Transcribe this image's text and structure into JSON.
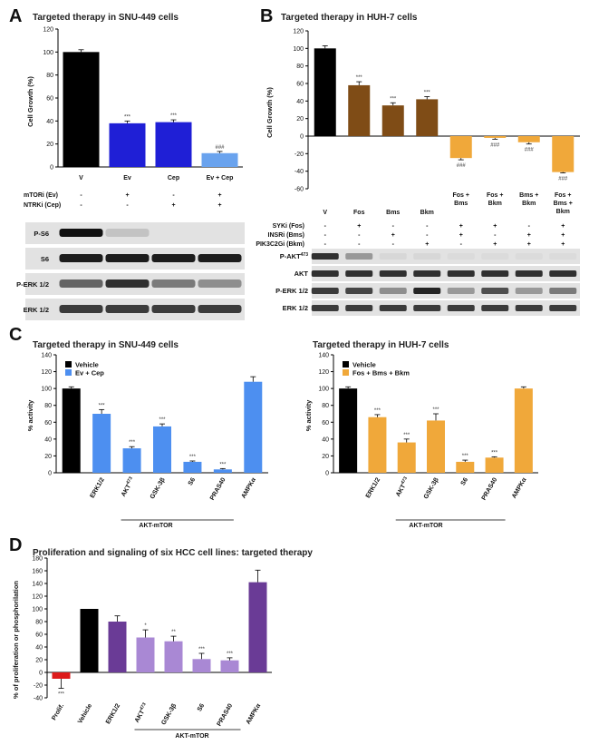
{
  "colors": {
    "black": "#000000",
    "ev_blue": "#1f1fd6",
    "ev_light": "#6aa3ee",
    "brown": "#7f4c16",
    "orange": "#f0a83a",
    "blue_c": "#4d8ff0",
    "red": "#dd1a1a",
    "purple_dark": "#6a3b96",
    "purple_light": "#a988d4"
  },
  "panels": {
    "A": {
      "letter": "A",
      "title": "Targeted therapy in SNU-449 cells",
      "ylabel": "Cell Growth (%)",
      "treat_rows": [
        {
          "label": "mTORi (Ev)",
          "marks": [
            "-",
            "+",
            "-",
            "+"
          ]
        },
        {
          "label": "NTRKi (Cep)",
          "marks": [
            "-",
            "-",
            "+",
            "+"
          ]
        }
      ],
      "blots": [
        "P-S6",
        "S6",
        "P-ERK 1/2",
        "ERK 1/2"
      ]
    },
    "B": {
      "letter": "B",
      "title": "Targeted therapy in HUH-7 cells",
      "ylabel": "Cell Growth (%)",
      "treat_rows": [
        {
          "label": "SYKi (Fos)",
          "marks": [
            "-",
            "+",
            "-",
            "-",
            "+",
            "+",
            "-",
            "+"
          ]
        },
        {
          "label": "INSRi (Bms)",
          "marks": [
            "-",
            "-",
            "+",
            "-",
            "+",
            "-",
            "+",
            "+"
          ]
        },
        {
          "label": "PIK3C2Gi (Bkm)",
          "marks": [
            "-",
            "-",
            "-",
            "+",
            "-",
            "+",
            "+",
            "+"
          ]
        }
      ],
      "blots": [
        "P-AKT473",
        "AKT",
        "P-ERK 1/2",
        "ERK 1/2"
      ]
    },
    "C": {
      "letter": "C",
      "left_title": "Targeted therapy in SNU-449 cells",
      "right_title": "Targeted therapy in HUH-7 cells",
      "ylabel": "% activity",
      "bracket_label": "AKT-mTOR"
    },
    "D": {
      "letter": "D",
      "title": "Proliferation and signaling of six HCC cell lines: targeted therapy",
      "ylabel": "% of proliferation or phosphorilation",
      "bracket_label": "AKT-mTOR"
    }
  },
  "chart_data": [
    {
      "id": "A",
      "type": "bar",
      "title": "Targeted therapy in SNU-449 cells",
      "ylabel": "Cell Growth (%)",
      "ylim": [
        0,
        120
      ],
      "yticks": [
        0,
        20,
        40,
        60,
        80,
        100,
        120
      ],
      "categories": [
        "V",
        "Ev",
        "Cep",
        "Ev + Cep"
      ],
      "values": [
        100,
        38,
        39,
        12
      ],
      "errors": [
        2,
        2,
        2,
        1.5
      ],
      "significance": [
        "",
        "***",
        "***",
        "###"
      ],
      "bar_colors": [
        "#000000",
        "#1f1fd6",
        "#1f1fd6",
        "#6aa3ee"
      ]
    },
    {
      "id": "B",
      "type": "bar",
      "title": "Targeted therapy in HUH-7 cells",
      "ylabel": "Cell Growth (%)",
      "ylim": [
        -60,
        120
      ],
      "yticks": [
        -60,
        -40,
        -20,
        0,
        20,
        40,
        60,
        80,
        100,
        120
      ],
      "categories": [
        "V",
        "Fos",
        "Bms",
        "Bkm",
        "Fos + Bms",
        "Fos + Bkm",
        "Bms + Bkm",
        "Fos + Bms + Bkm"
      ],
      "values": [
        100,
        58,
        35,
        42,
        -25,
        -2,
        -7,
        -41
      ],
      "errors": [
        3,
        4,
        3,
        3,
        2,
        1.5,
        2,
        1
      ],
      "significance": [
        "",
        "***",
        "***",
        "***",
        "###",
        "###",
        "###",
        "###"
      ],
      "bar_colors": [
        "#000000",
        "#7f4c16",
        "#7f4c16",
        "#7f4c16",
        "#f0a83a",
        "#f0a83a",
        "#f0a83a",
        "#f0a83a"
      ]
    },
    {
      "id": "C-left",
      "type": "bar",
      "title": "Targeted therapy in SNU-449 cells",
      "ylabel": "% activity",
      "ylim": [
        0,
        140
      ],
      "yticks": [
        0,
        20,
        40,
        60,
        80,
        100,
        120,
        140
      ],
      "categories": [
        "ERK1/2",
        "AKT473",
        "GSK-3β",
        "S6",
        "PRAS40",
        "AMPKα"
      ],
      "series": [
        {
          "name": "Vehicle",
          "color": "#000000",
          "values": [
            100,
            null,
            null,
            null,
            null,
            null
          ],
          "errors": [
            2,
            null,
            null,
            null,
            null,
            null
          ]
        },
        {
          "name": "Ev + Cep",
          "color": "#4d8ff0",
          "values": [
            70,
            29,
            55,
            13,
            4,
            108
          ],
          "errors": [
            5,
            2,
            3,
            1,
            1,
            6
          ]
        }
      ],
      "significance": [
        "***",
        "***",
        "***",
        "***",
        "***",
        ""
      ],
      "legend": "top-left"
    },
    {
      "id": "C-right",
      "type": "bar",
      "title": "Targeted therapy in HUH-7 cells",
      "ylabel": "% activity",
      "ylim": [
        0,
        140
      ],
      "yticks": [
        0,
        20,
        40,
        60,
        80,
        100,
        120,
        140
      ],
      "categories": [
        "ERK1/2",
        "AKT473",
        "GSK-3β",
        "S6",
        "PRAS40",
        "AMPKα"
      ],
      "series": [
        {
          "name": "Vehicle",
          "color": "#000000",
          "values": [
            100,
            null,
            null,
            null,
            null,
            null
          ],
          "errors": [
            2,
            null,
            null,
            null,
            null,
            null
          ]
        },
        {
          "name": "Fos + Bms + Bkm",
          "color": "#f0a83a",
          "values": [
            66,
            36,
            62,
            13,
            18,
            100
          ],
          "errors": [
            3,
            4,
            8,
            2,
            1,
            2
          ]
        }
      ],
      "significance": [
        "***",
        "***",
        "***",
        "***",
        "***",
        ""
      ],
      "legend": "top-left"
    },
    {
      "id": "D",
      "type": "bar",
      "title": "Proliferation and signaling of six HCC cell lines: targeted therapy",
      "ylabel": "% of proliferation or phosphorilation",
      "ylim": [
        -40,
        180
      ],
      "yticks": [
        -40,
        -20,
        0,
        20,
        40,
        60,
        80,
        100,
        120,
        140,
        160,
        180
      ],
      "categories": [
        "Prolif.",
        "Vehicle",
        "ERK1/2",
        "AKT473",
        "GSK-3β",
        "S6",
        "PRAS40",
        "AMPKα"
      ],
      "values": [
        -10,
        100,
        80,
        55,
        49,
        21,
        19,
        142
      ],
      "errors": [
        15,
        0,
        9,
        12,
        8,
        9,
        4,
        19
      ],
      "significance": [
        "***",
        "",
        "",
        "*",
        "**",
        "***",
        "***",
        ""
      ],
      "bar_colors": [
        "#dd1a1a",
        "#000000",
        "#6a3b96",
        "#a988d4",
        "#a988d4",
        "#a988d4",
        "#a988d4",
        "#6a3b96"
      ]
    }
  ]
}
